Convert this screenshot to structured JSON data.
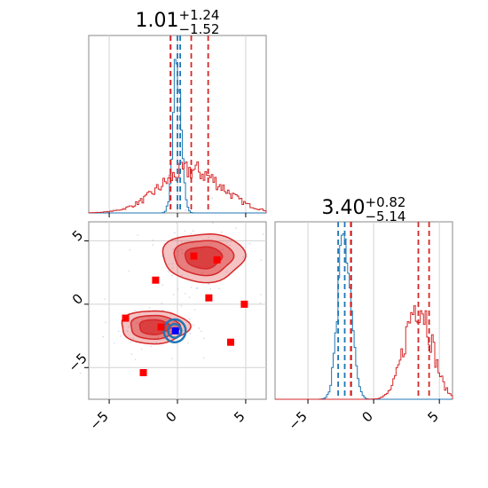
{
  "colors": {
    "red": "#d62728",
    "blue": "#1f77b4",
    "marker": "#ff0000",
    "marker_blue": "#0000ff",
    "grid": "#d3d3d3",
    "frame": "#888888"
  },
  "chart_data": [
    {
      "type": "histogram",
      "panel": "top-left",
      "title": {
        "value": "1.01",
        "sup": "+1.24",
        "sub": "−1.52"
      },
      "xlim": [
        -6.5,
        6.5
      ],
      "grid": true,
      "series": [
        {
          "color": "#1f77b4",
          "center": 0.0,
          "spread": 0.3,
          "quantiles": [
            -0.5,
            0.0,
            0.2
          ]
        },
        {
          "color": "#d62728",
          "center": 1.0,
          "spread": 2.3,
          "quantiles": [
            -0.51,
            1.01,
            2.25
          ]
        }
      ]
    },
    {
      "type": "scatter",
      "panel": "bottom-left",
      "xlim": [
        -6.5,
        6.5
      ],
      "ylim": [
        -7.5,
        6.5
      ],
      "xticks": [
        "−5",
        "0",
        "5"
      ],
      "yticks": [
        "−5",
        "0",
        "5"
      ],
      "xtick_values": [
        -5,
        0,
        5
      ],
      "ytick_values": [
        -5,
        0,
        5
      ],
      "grid": true,
      "contours_red": [
        {
          "cx": 1.9,
          "cy": 3.7,
          "rx": 3.0,
          "ry": 1.9
        },
        {
          "cx": -1.7,
          "cy": -1.8,
          "rx": 2.5,
          "ry": 1.3
        }
      ],
      "contour_blue": {
        "cx": -0.2,
        "cy": -2.1,
        "rx": 0.8,
        "ry": 0.9
      },
      "markers": [
        {
          "x": 1.2,
          "y": 3.8
        },
        {
          "x": 2.9,
          "y": 3.5
        },
        {
          "x": -1.6,
          "y": 1.9
        },
        {
          "x": 2.3,
          "y": 0.5
        },
        {
          "x": 4.9,
          "y": 0.0
        },
        {
          "x": -3.8,
          "y": -1.1
        },
        {
          "x": -1.2,
          "y": -1.8
        },
        {
          "x": 3.9,
          "y": -3.0
        },
        {
          "x": -2.5,
          "y": -5.4
        }
      ],
      "marker_blue": {
        "x": -0.15,
        "y": -2.1
      }
    },
    {
      "type": "histogram",
      "panel": "bottom-right",
      "title": {
        "value": "3.40",
        "sup": "+0.82",
        "sub": "−5.14"
      },
      "xlim": [
        -7.5,
        6.0
      ],
      "xticks": [
        "−5",
        "0",
        "5"
      ],
      "xtick_values": [
        -5,
        0,
        5
      ],
      "grid": true,
      "series": [
        {
          "color": "#1f77b4",
          "center": -2.2,
          "spread": 0.5,
          "quantiles": [
            -2.7,
            -2.2,
            -1.7
          ]
        },
        {
          "color": "#d62728",
          "center": 3.4,
          "spread": 1.0,
          "quantiles": [
            -1.74,
            3.4,
            4.22
          ]
        }
      ]
    }
  ]
}
